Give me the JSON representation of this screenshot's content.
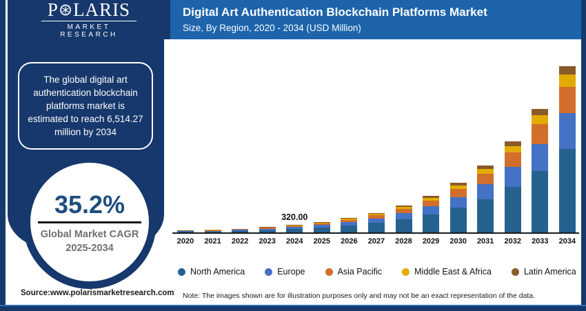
{
  "header": {
    "logo": {
      "prefix": "P",
      "o_star": "⊛",
      "suffix": "LARIS",
      "sub": "MARKET RESEARCH"
    },
    "title_line1": "Digital Art Authentication Blockchain Platforms Market",
    "title_line2": "Size, By Region, 2020 - 2034 (USD Million)"
  },
  "sidebar": {
    "callout": "The global digital art authentication blockchain platforms market is estimated to reach 6,514.27 million by 2034",
    "cagr_value": "35.2%",
    "cagr_label1": "Global Market CAGR",
    "cagr_label2": "2025-2034"
  },
  "chart_data": {
    "type": "bar",
    "stacked": true,
    "title": "Digital Art Authentication Blockchain Platforms Market Size, By Region, 2020 - 2034 (USD Million)",
    "xlabel": "",
    "ylabel": "USD Million",
    "ylim": [
      0,
      6600
    ],
    "grid": false,
    "y_axis_shown": false,
    "legend_position": "bottom",
    "categories": [
      "2020",
      "2021",
      "2022",
      "2023",
      "2024",
      "2025",
      "2026",
      "2027",
      "2028",
      "2029",
      "2030",
      "2031",
      "2032",
      "2033",
      "2034"
    ],
    "totals": [
      96.5,
      130,
      176,
      237,
      320.0,
      433,
      585,
      791,
      1070,
      1446,
      1956,
      2644,
      3575,
      4833,
      6514.27
    ],
    "series": [
      {
        "name": "North America",
        "color": "#25618F",
        "values": [
          48.5,
          65.4,
          88.5,
          119.2,
          161.0,
          217.8,
          294.3,
          397.9,
          538.2,
          727.3,
          983.9,
          1330.0,
          1798.2,
          2431.0,
          3276.7
        ]
      },
      {
        "name": "Europe",
        "color": "#4472C4",
        "values": [
          21.0,
          28.3,
          38.4,
          51.7,
          69.8,
          94.4,
          127.5,
          172.4,
          233.3,
          315.2,
          426.4,
          576.4,
          779.4,
          1053.6,
          1420.1
        ]
      },
      {
        "name": "Asia Pacific",
        "color": "#D26E2B",
        "values": [
          15.2,
          20.4,
          27.6,
          37.2,
          50.2,
          68.0,
          91.8,
          124.2,
          168.0,
          227.0,
          307.1,
          415.1,
          561.3,
          758.8,
          1022.7
        ]
      },
      {
        "name": "Middle East & Africa",
        "color": "#E2AB00",
        "values": [
          7.0,
          9.5,
          12.8,
          17.3,
          23.4,
          31.6,
          42.7,
          57.7,
          78.1,
          105.6,
          142.8,
          193.0,
          261.0,
          352.8,
          475.5
        ]
      },
      {
        "name": "Latin America",
        "color": "#8A5A2B",
        "values": [
          4.7,
          6.4,
          8.6,
          11.6,
          15.7,
          21.2,
          28.7,
          38.8,
          52.4,
          70.9,
          95.8,
          129.6,
          175.2,
          236.8,
          319.2
        ]
      }
    ],
    "annotations": [
      {
        "category": "2024",
        "text": "320.00"
      }
    ]
  },
  "footer": {
    "source": "Source:www.polarismarketresearch.com",
    "note": "Note: The images shown are for illustration purposes only and may not be an exact representation of the data."
  },
  "colors": {
    "navy": "#16386C",
    "title_band": "#1D64AB",
    "cagr_blue": "#1D4E7E",
    "label_gray": "#6E6F72"
  }
}
